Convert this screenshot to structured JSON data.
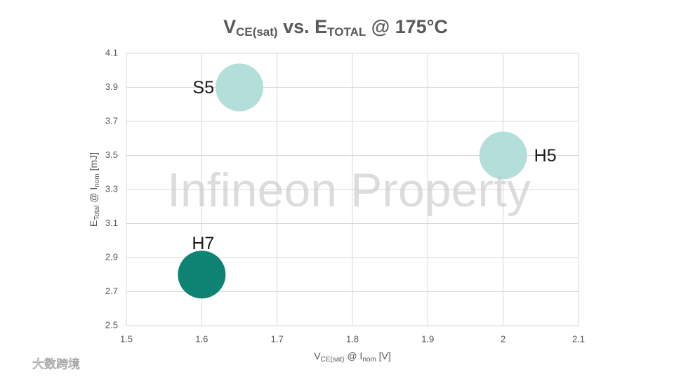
{
  "chart_data": {
    "type": "bubble",
    "title": [
      "V",
      "CE(sat)",
      " vs. E",
      "TOTAL",
      " @ 175°C"
    ],
    "x_label": [
      "V",
      "CE(sat)",
      " @ I",
      "nom",
      " [V]"
    ],
    "y_label": [
      "E",
      "Total",
      " @ I",
      "nom",
      " [mJ]"
    ],
    "annotations": [
      "Infineon Property",
      "大数跨境"
    ],
    "series": [
      {
        "name": "S5",
        "color": "#b3deda",
        "x": [
          1.65
        ],
        "values": [
          3.9
        ]
      },
      {
        "name": "H5",
        "color": "#b3deda",
        "x": [
          2
        ],
        "values": [
          3.5
        ]
      },
      {
        "name": "H7",
        "color": "#0e8373",
        "x": [
          1.6
        ],
        "values": [
          2.8
        ]
      }
    ],
    "xlim": [
      1.5,
      2.1
    ],
    "xticks": [
      1.5,
      1.6,
      1.7,
      1.8,
      1.9,
      2,
      2.1
    ],
    "ylim": [
      2.5,
      4.1
    ],
    "yticks": [
      2.5,
      2.7,
      2.9,
      3.1,
      3.3,
      3.5,
      3.7,
      3.9,
      4.1
    ],
    "grid": true
  }
}
